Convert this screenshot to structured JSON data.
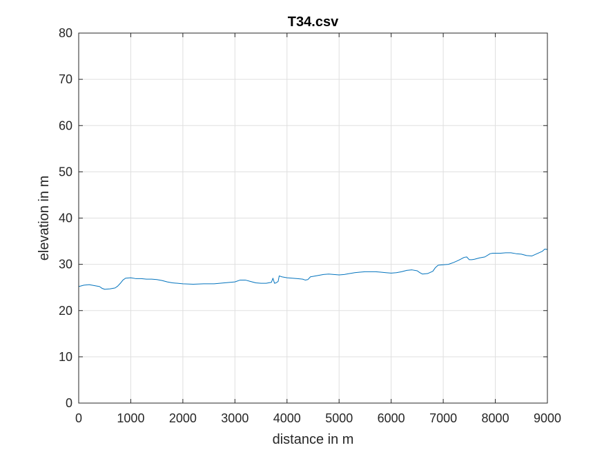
{
  "chart_data": {
    "type": "line",
    "title": "T34.csv",
    "xlabel": "distance in m",
    "ylabel": "elevation in m",
    "xlim": [
      0,
      9000
    ],
    "ylim": [
      0,
      80
    ],
    "xticks": [
      0,
      1000,
      2000,
      3000,
      4000,
      5000,
      6000,
      7000,
      8000,
      9000
    ],
    "yticks": [
      0,
      10,
      20,
      30,
      40,
      50,
      60,
      70,
      80
    ],
    "grid": true,
    "line_color": "#0072BD",
    "series": [
      {
        "x": [
          0,
          100,
          200,
          300,
          400,
          450,
          500,
          600,
          700,
          750,
          800,
          850,
          900,
          1000,
          1100,
          1200,
          1300,
          1400,
          1500,
          1600,
          1700,
          1800,
          1900,
          2000,
          2200,
          2400,
          2600,
          2800,
          3000,
          3100,
          3200,
          3300,
          3400,
          3500,
          3600,
          3700,
          3730,
          3760,
          3790,
          3830,
          3850,
          3900,
          4000,
          4100,
          4200,
          4300,
          4350,
          4400,
          4450,
          4500,
          4600,
          4700,
          4800,
          4900,
          5000,
          5100,
          5200,
          5300,
          5400,
          5500,
          5600,
          5700,
          5800,
          5900,
          6000,
          6100,
          6200,
          6300,
          6400,
          6500,
          6550,
          6600,
          6700,
          6800,
          6850,
          6900,
          7000,
          7100,
          7200,
          7300,
          7400,
          7450,
          7500,
          7550,
          7600,
          7700,
          7800,
          7900,
          7950,
          8000,
          8100,
          8200,
          8300,
          8400,
          8500,
          8600,
          8700,
          8800,
          8900,
          8950,
          9000
        ],
        "y": [
          25.2,
          25.5,
          25.6,
          25.4,
          25.2,
          24.8,
          24.6,
          24.7,
          24.9,
          25.3,
          25.9,
          26.6,
          27.0,
          27.1,
          26.9,
          26.9,
          26.8,
          26.8,
          26.7,
          26.5,
          26.2,
          26.0,
          25.9,
          25.8,
          25.7,
          25.8,
          25.8,
          26.0,
          26.2,
          26.6,
          26.6,
          26.3,
          26.0,
          25.9,
          25.9,
          26.1,
          27.0,
          25.9,
          26.0,
          26.3,
          27.5,
          27.3,
          27.1,
          27.0,
          26.9,
          26.8,
          26.6,
          26.7,
          27.3,
          27.4,
          27.6,
          27.8,
          27.9,
          27.8,
          27.7,
          27.8,
          28.0,
          28.2,
          28.3,
          28.4,
          28.4,
          28.4,
          28.3,
          28.2,
          28.1,
          28.2,
          28.4,
          28.7,
          28.8,
          28.6,
          28.2,
          27.9,
          28.0,
          28.5,
          29.3,
          29.8,
          29.9,
          30.0,
          30.4,
          30.9,
          31.5,
          31.6,
          31.0,
          31.0,
          31.1,
          31.4,
          31.6,
          32.3,
          32.4,
          32.4,
          32.4,
          32.5,
          32.5,
          32.3,
          32.2,
          31.9,
          31.8,
          32.3,
          32.8,
          33.3,
          33.2
        ]
      }
    ]
  }
}
